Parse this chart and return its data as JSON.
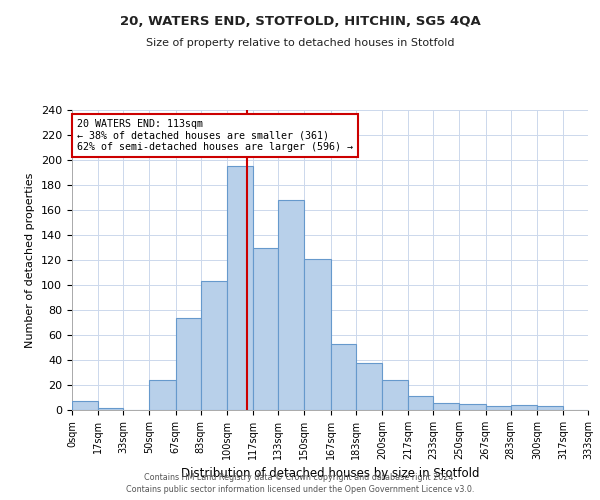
{
  "title": "20, WATERS END, STOTFOLD, HITCHIN, SG5 4QA",
  "subtitle": "Size of property relative to detached houses in Stotfold",
  "xlabel": "Distribution of detached houses by size in Stotfold",
  "ylabel": "Number of detached properties",
  "bar_edges": [
    0,
    17,
    33,
    50,
    67,
    83,
    100,
    117,
    133,
    150,
    167,
    183,
    200,
    217,
    233,
    250,
    267,
    283,
    300,
    317,
    333
  ],
  "bar_heights": [
    7,
    2,
    0,
    24,
    74,
    103,
    195,
    130,
    168,
    121,
    53,
    38,
    24,
    11,
    6,
    5,
    3,
    4,
    3,
    0
  ],
  "bar_color": "#b8d0ea",
  "bar_edge_color": "#6699cc",
  "property_line_x": 113,
  "property_line_color": "#cc0000",
  "annotation_text": "20 WATERS END: 113sqm\n← 38% of detached houses are smaller (361)\n62% of semi-detached houses are larger (596) →",
  "annotation_box_edge_color": "#cc0000",
  "annotation_box_face_color": "#ffffff",
  "tick_labels": [
    "0sqm",
    "17sqm",
    "33sqm",
    "50sqm",
    "67sqm",
    "83sqm",
    "100sqm",
    "117sqm",
    "133sqm",
    "150sqm",
    "167sqm",
    "183sqm",
    "200sqm",
    "217sqm",
    "233sqm",
    "250sqm",
    "267sqm",
    "283sqm",
    "300sqm",
    "317sqm",
    "333sqm"
  ],
  "ylim": [
    0,
    240
  ],
  "yticks": [
    0,
    20,
    40,
    60,
    80,
    100,
    120,
    140,
    160,
    180,
    200,
    220,
    240
  ],
  "footer_line1": "Contains HM Land Registry data © Crown copyright and database right 2024.",
  "footer_line2": "Contains public sector information licensed under the Open Government Licence v3.0.",
  "background_color": "#ffffff",
  "grid_color": "#ccd8ec"
}
